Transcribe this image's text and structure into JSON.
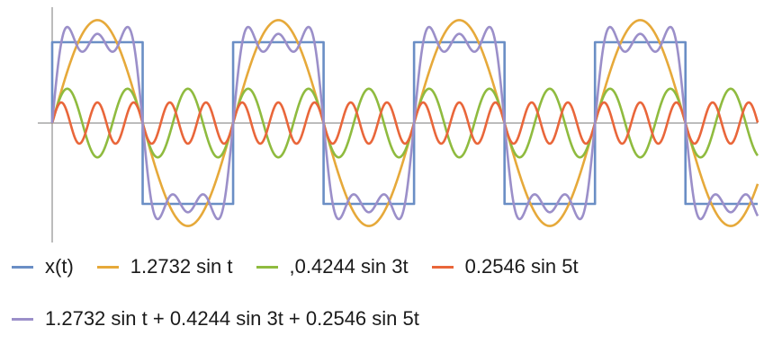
{
  "chart_data": {
    "type": "line",
    "title": "",
    "xlabel": "",
    "ylabel": "",
    "x_range": [
      0,
      24.5
    ],
    "y_range": [
      -1.4,
      1.25
    ],
    "period": 6.2832,
    "grid": false,
    "legend_position": "bottom",
    "series": [
      {
        "name": "x(t)",
        "color": "#6a8ec5",
        "kind": "square",
        "amplitude": 1,
        "harmonic": 1
      },
      {
        "name": "1.2732 sin t",
        "color": "#e6a93a",
        "kind": "sine",
        "amplitude": 1.2732,
        "harmonic": 1
      },
      {
        "name": ",0.4244 sin 3t",
        "color": "#8fbb3f",
        "kind": "sine",
        "amplitude": 0.4244,
        "harmonic": 3
      },
      {
        "name": "0.2546 sin 5t",
        "color": "#e9663a",
        "kind": "sine",
        "amplitude": 0.2546,
        "harmonic": 5
      },
      {
        "name": "1.2732 sin t + 0.4244 sin 3t + 0.2546 sin 5t",
        "color": "#9b8fc9",
        "kind": "sum",
        "terms": [
          [
            1.2732,
            1
          ],
          [
            0.4244,
            3
          ],
          [
            0.2546,
            5
          ]
        ]
      }
    ]
  }
}
